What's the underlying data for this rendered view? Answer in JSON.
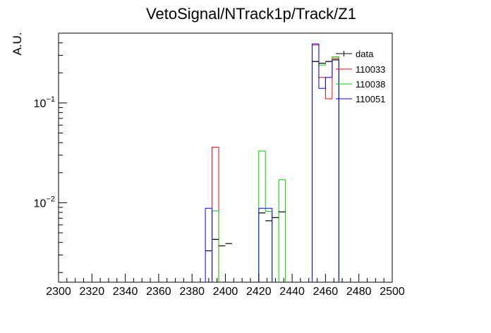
{
  "chart_data": {
    "type": "histogram",
    "title": "VetoSignal/NTrack1p/Track/Z1",
    "xlabel": "",
    "ylabel": "A.U.",
    "yscale": "log",
    "xlim": [
      2300,
      2500
    ],
    "ylim": [
      0.0016,
      0.5
    ],
    "bin_width": 4,
    "x_ticks": [
      2300,
      2320,
      2340,
      2360,
      2380,
      2400,
      2420,
      2440,
      2460,
      2480,
      2500
    ],
    "y_ticks": [
      {
        "value": 0.1,
        "base": "10",
        "exp": "−1"
      },
      {
        "value": 0.01,
        "base": "10",
        "exp": "−2"
      }
    ],
    "legend": "top-right",
    "series": [
      {
        "name": "data",
        "style": "markers",
        "color": "#000000",
        "x": [
          2390,
          2394,
          2398,
          2402,
          2422,
          2426,
          2430,
          2434,
          2454,
          2458,
          2462,
          2466
        ],
        "values": [
          0.0033,
          0.0043,
          0.0037,
          0.0039,
          0.0079,
          0.0066,
          0.0071,
          0.0081,
          0.26,
          0.25,
          0.26,
          0.27
        ]
      },
      {
        "name": "110033",
        "style": "step",
        "color": "#ff0000",
        "x": [
          2394,
          2454,
          2458,
          2462,
          2466
        ],
        "values": [
          0.036,
          0.38,
          0.18,
          0.11,
          0.28
        ]
      },
      {
        "name": "110038",
        "style": "step",
        "color": "#00cc00",
        "x": [
          2394,
          2422,
          2426,
          2434,
          2454,
          2458,
          2462,
          2466
        ],
        "values": [
          0.0083,
          0.033,
          0.0082,
          0.017,
          0.26,
          0.24,
          0.26,
          0.29
        ]
      },
      {
        "name": "110051",
        "style": "step",
        "color": "#0000ff",
        "x": [
          2390,
          2422,
          2426,
          2454,
          2458,
          2462,
          2466
        ],
        "values": [
          0.0088,
          0.0088,
          0.0088,
          0.39,
          0.14,
          0.18,
          0.27
        ]
      }
    ]
  }
}
